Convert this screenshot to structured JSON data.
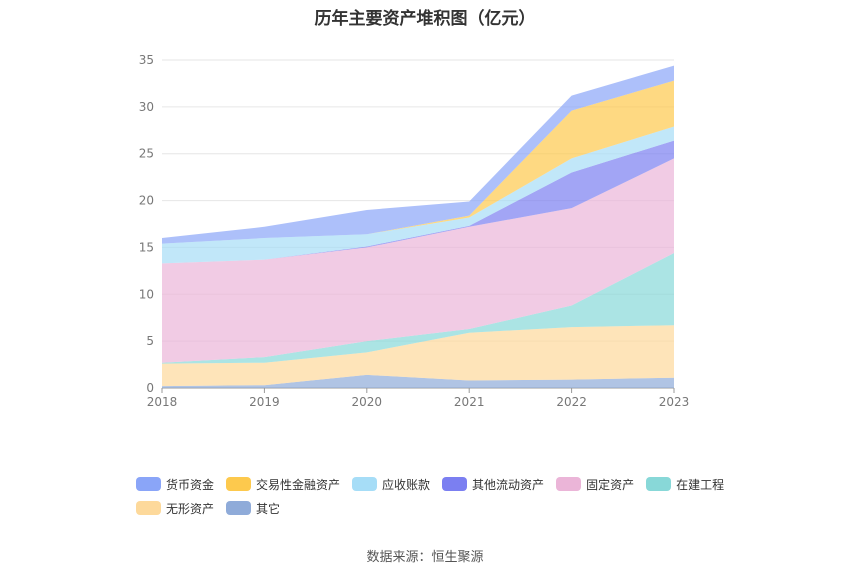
{
  "title": "历年主要资产堆积图（亿元）",
  "source": "数据来源：恒生聚源",
  "chart_data": {
    "type": "area",
    "stacked": true,
    "title": "历年主要资产堆积图（亿元）",
    "xlabel": "",
    "ylabel": "",
    "x": [
      "2018",
      "2019",
      "2020",
      "2021",
      "2022",
      "2023"
    ],
    "ylim": [
      0,
      35
    ],
    "yticks": [
      0,
      5,
      10,
      15,
      20,
      25,
      30,
      35
    ],
    "grid": true,
    "legend_position": "bottom",
    "series": [
      {
        "name": "其它",
        "color": "#8fabd9",
        "values": [
          0.2,
          0.3,
          1.4,
          0.8,
          0.9,
          1.1
        ]
      },
      {
        "name": "无形资产",
        "color": "#fdd99b",
        "values": [
          2.4,
          2.4,
          2.4,
          5.1,
          5.6,
          5.6
        ]
      },
      {
        "name": "在建工程",
        "color": "#88d8d8",
        "values": [
          0.1,
          0.6,
          1.2,
          0.4,
          2.3,
          7.7
        ]
      },
      {
        "name": "固定资产",
        "color": "#ebb5d8",
        "values": [
          10.6,
          10.4,
          10.0,
          10.9,
          10.4,
          10.1
        ]
      },
      {
        "name": "其他流动资产",
        "color": "#7b7ff1",
        "values": [
          0.0,
          0.0,
          0.1,
          0.1,
          3.8,
          1.9
        ]
      },
      {
        "name": "应收账款",
        "color": "#a6ddf7",
        "values": [
          2.1,
          2.3,
          1.3,
          0.9,
          1.5,
          1.5
        ]
      },
      {
        "name": "交易性金融资产",
        "color": "#fdc94d",
        "values": [
          0.0,
          0.0,
          0.0,
          0.2,
          5.1,
          4.9
        ]
      },
      {
        "name": "货币资金",
        "color": "#8aa5f8",
        "values": [
          0.6,
          1.2,
          2.6,
          1.5,
          1.6,
          1.6
        ]
      }
    ]
  },
  "legend": [
    [
      {
        "label": "货币资金",
        "color": "#8aa5f8"
      },
      {
        "label": "交易性金融资产",
        "color": "#fdc94d"
      },
      {
        "label": "应收账款",
        "color": "#a6ddf7"
      },
      {
        "label": "其他流动资产",
        "color": "#7b7ff1"
      },
      {
        "label": "固定资产",
        "color": "#ebb5d8"
      },
      {
        "label": "在建工程",
        "color": "#88d8d8"
      }
    ],
    [
      {
        "label": "无形资产",
        "color": "#fdd99b"
      },
      {
        "label": "其它",
        "color": "#8fabd9"
      }
    ]
  ]
}
